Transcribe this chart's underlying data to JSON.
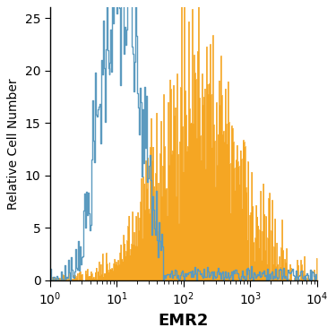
{
  "title": "",
  "xlabel": "EMR2",
  "ylabel": "Relative Cell Number",
  "xlim_log": [
    0,
    4
  ],
  "ylim": [
    0,
    26
  ],
  "yticks": [
    0,
    5,
    10,
    15,
    20,
    25
  ],
  "blue_color": "#5b9abf",
  "orange_color": "#f5a623",
  "blue_linewidth": 1.0,
  "orange_linewidth": 0.5,
  "xlabel_fontsize": 13,
  "ylabel_fontsize": 10,
  "tick_fontsize": 10,
  "n_bins": 300,
  "blue_peak_log": 1.1,
  "blue_sigma": 0.28,
  "blue_max_scale": 25,
  "orange_peak_log": 2.35,
  "orange_sigma": 0.52,
  "orange_max_scale": 17,
  "noise_seed": 7
}
